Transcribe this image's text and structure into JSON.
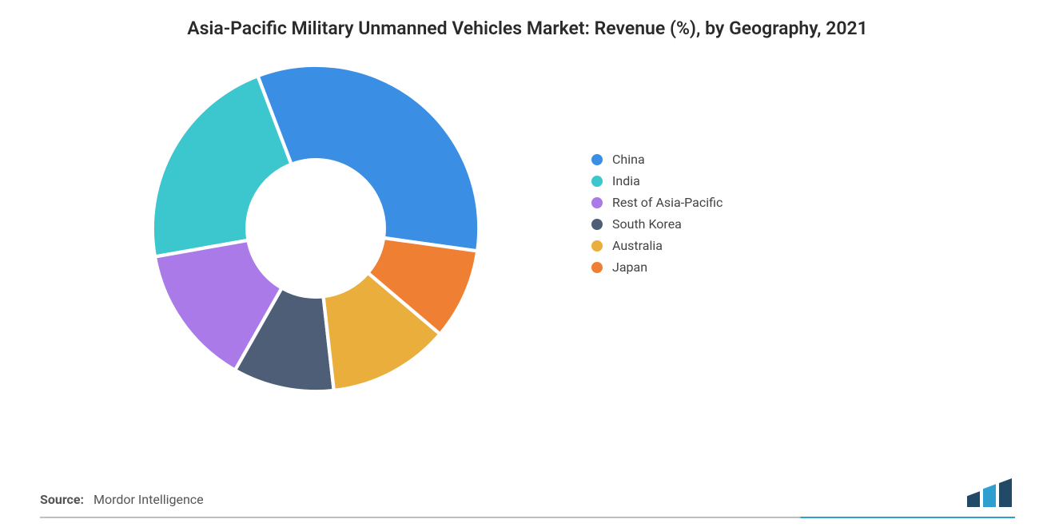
{
  "chart": {
    "type": "donut",
    "title": "Asia-Pacific Military Unmanned Vehicles Market: Revenue (%), by Geography, 2021",
    "background_color": "#ffffff",
    "title_fontsize": 23,
    "title_color": "#2a2a2a",
    "inner_radius_pct": 42,
    "outer_radius_pct": 100,
    "start_angle_deg": -8,
    "slices": [
      {
        "label": "China",
        "value": 33,
        "color": "#3a8ee3"
      },
      {
        "label": "India",
        "value": 22,
        "color": "#3cc6ce"
      },
      {
        "label": "Rest of Asia-Pacific",
        "value": 14,
        "color": "#a97ae8"
      },
      {
        "label": "South Korea",
        "value": 10,
        "color": "#4e5e77"
      },
      {
        "label": "Australia",
        "value": 12,
        "color": "#eaae3c"
      },
      {
        "label": "Japan",
        "value": 9,
        "color": "#ef7f33"
      }
    ],
    "legend": {
      "position": "right",
      "dot_size": 14,
      "fontsize": 16,
      "text_color": "#444"
    }
  },
  "source": {
    "label": "Source:",
    "text": "Mordor Intelligence"
  },
  "logo": {
    "bars": [
      {
        "color": "#224a66",
        "height_pct": 55
      },
      {
        "color": "#2f9fd0",
        "height_pct": 80
      },
      {
        "color": "#224a66",
        "height_pct": 100
      }
    ]
  }
}
